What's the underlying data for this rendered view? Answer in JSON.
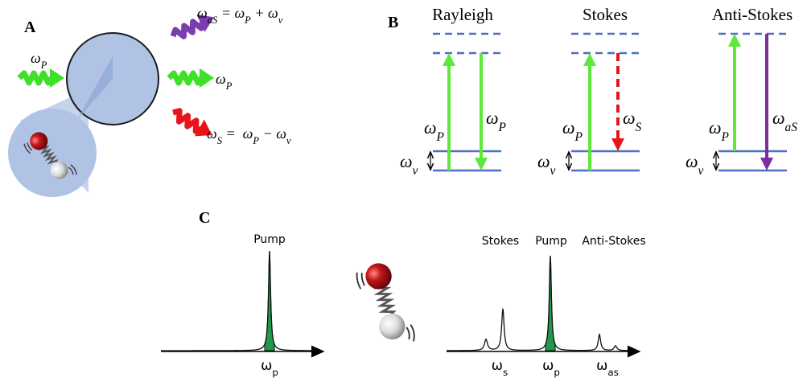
{
  "panel_a": {
    "label": "A",
    "pump_in_label": [
      {
        "text": "ω"
      },
      {
        "sub": "P"
      }
    ],
    "anti_stokes_label": [
      {
        "text": "ω"
      },
      {
        "sub": "aS"
      },
      {
        "text": " = ω"
      },
      {
        "sub": "P"
      },
      {
        "text": " + ω"
      },
      {
        "sub": "ν"
      }
    ],
    "rayleigh_label": [
      {
        "text": "ω"
      },
      {
        "sub": "P"
      }
    ],
    "stokes_label": [
      {
        "text": "ω"
      },
      {
        "sub": "S"
      },
      {
        "text": " =  ω"
      },
      {
        "sub": "P"
      },
      {
        "text": " − ω"
      },
      {
        "sub": "ν"
      }
    ]
  },
  "panel_b": {
    "label": "B",
    "diagrams": [
      {
        "title": "Rayleigh",
        "up_label": [
          {
            "text": "ω"
          },
          {
            "sub": "P"
          }
        ],
        "down_label": [
          {
            "text": "ω"
          },
          {
            "sub": "P"
          }
        ],
        "vib_label": [
          {
            "text": "ω"
          },
          {
            "sub": "ν"
          }
        ]
      },
      {
        "title": "Stokes",
        "up_label": [
          {
            "text": "ω"
          },
          {
            "sub": "P"
          }
        ],
        "down_label": [
          {
            "text": "ω"
          },
          {
            "sub": "S"
          }
        ],
        "vib_label": [
          {
            "text": "ω"
          },
          {
            "sub": "ν"
          }
        ]
      },
      {
        "title": "Anti-Stokes",
        "up_label": [
          {
            "text": "ω"
          },
          {
            "sub": "P"
          }
        ],
        "down_label": [
          {
            "text": "ω"
          },
          {
            "sub": "aS"
          }
        ],
        "vib_label": [
          {
            "text": "ω"
          },
          {
            "sub": "ν"
          }
        ]
      }
    ]
  },
  "panel_c": {
    "label": "C",
    "pump_spectrum": {
      "peak_label": "Pump",
      "axis_label": [
        {
          "text": "ω"
        },
        {
          "sub": "p"
        }
      ]
    },
    "raman_spectrum": {
      "peak_labels": [
        "Stokes",
        "Pump",
        "Anti-Stokes"
      ],
      "axis_labels": [
        [
          {
            "text": "ω"
          },
          {
            "sub": "s"
          }
        ],
        [
          {
            "text": "ω"
          },
          {
            "sub": "p"
          }
        ],
        [
          {
            "text": "ω"
          },
          {
            "sub": "as"
          }
        ]
      ]
    }
  }
}
